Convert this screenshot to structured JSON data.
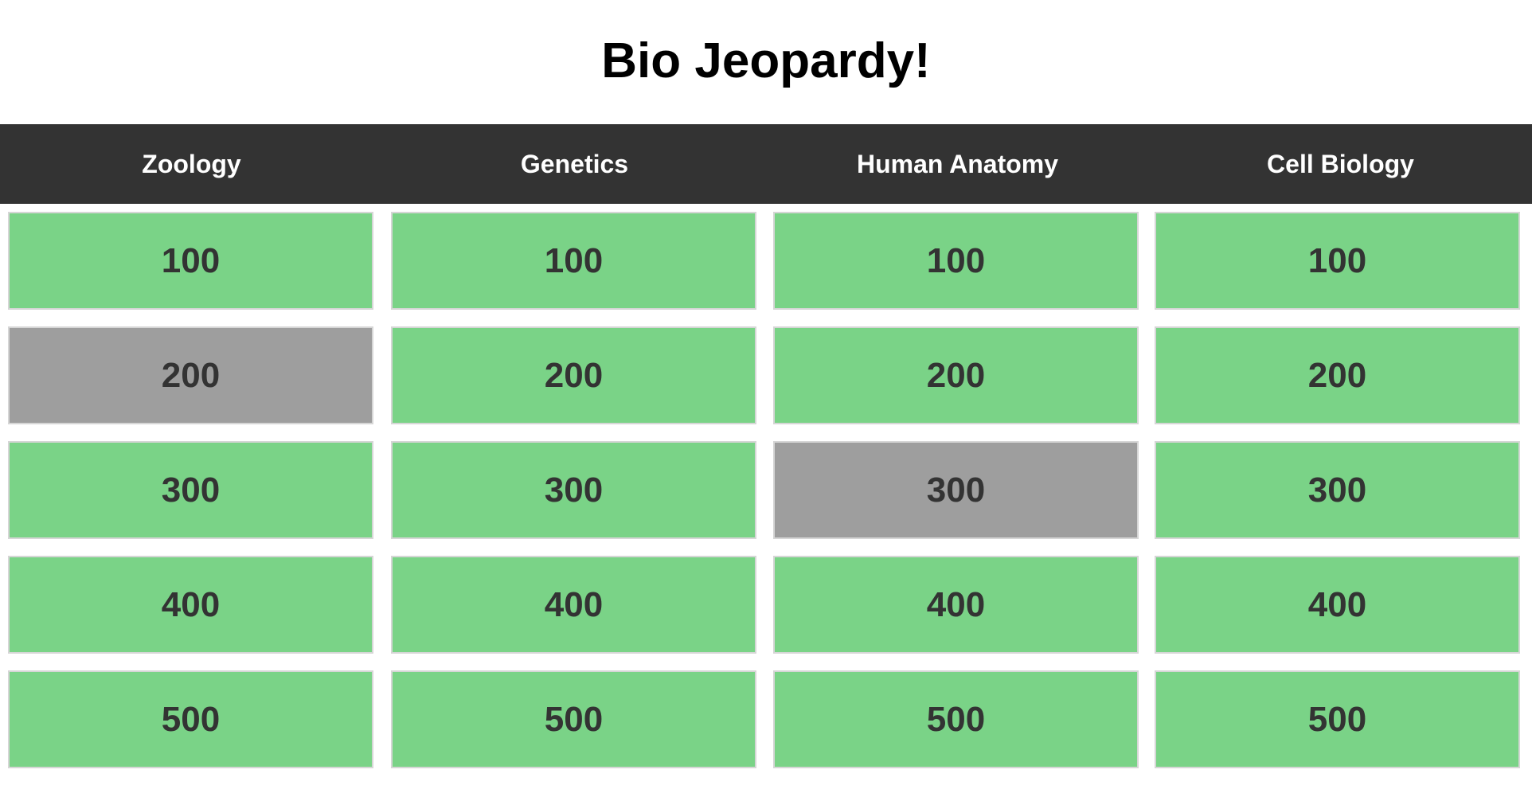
{
  "title": "Bio Jeopardy!",
  "board": {
    "columns": [
      {
        "category": "Zoology",
        "cells": [
          {
            "points": 100,
            "used": false
          },
          {
            "points": 200,
            "used": true
          },
          {
            "points": 300,
            "used": false
          },
          {
            "points": 400,
            "used": false
          },
          {
            "points": 500,
            "used": false
          }
        ]
      },
      {
        "category": "Genetics",
        "cells": [
          {
            "points": 100,
            "used": false
          },
          {
            "points": 200,
            "used": false
          },
          {
            "points": 300,
            "used": false
          },
          {
            "points": 400,
            "used": false
          },
          {
            "points": 500,
            "used": false
          }
        ]
      },
      {
        "category": "Human Anatomy",
        "cells": [
          {
            "points": 100,
            "used": false
          },
          {
            "points": 200,
            "used": false
          },
          {
            "points": 300,
            "used": true
          },
          {
            "points": 400,
            "used": false
          },
          {
            "points": 500,
            "used": false
          }
        ]
      },
      {
        "category": "Cell Biology",
        "cells": [
          {
            "points": 100,
            "used": false
          },
          {
            "points": 200,
            "used": false
          },
          {
            "points": 300,
            "used": false
          },
          {
            "points": 400,
            "used": false
          },
          {
            "points": 500,
            "used": false
          }
        ]
      }
    ]
  }
}
